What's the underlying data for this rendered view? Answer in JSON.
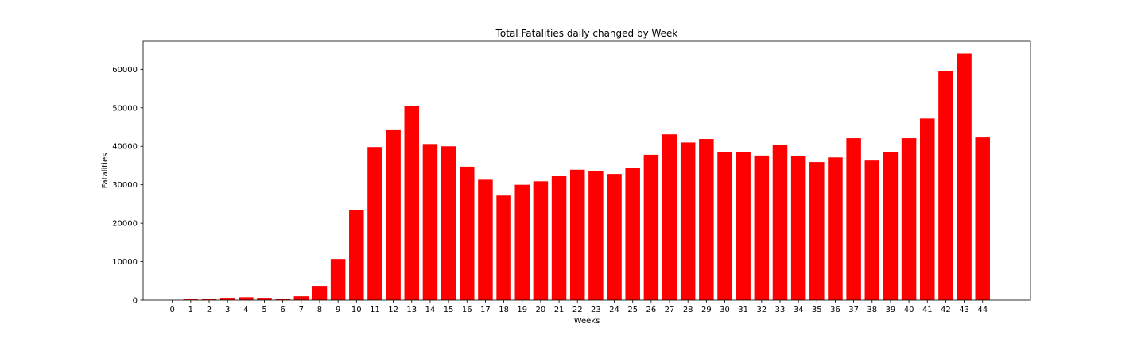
{
  "chart_data": {
    "type": "bar",
    "title": "Total Fatalities daily changed by Week",
    "xlabel": "Weeks",
    "ylabel": "Fatalities",
    "categories": [
      "0",
      "1",
      "2",
      "3",
      "4",
      "5",
      "6",
      "7",
      "8",
      "9",
      "10",
      "11",
      "12",
      "13",
      "14",
      "15",
      "16",
      "17",
      "18",
      "19",
      "20",
      "21",
      "22",
      "23",
      "24",
      "25",
      "26",
      "27",
      "28",
      "29",
      "30",
      "31",
      "32",
      "33",
      "34",
      "35",
      "36",
      "37",
      "38",
      "39",
      "40",
      "41",
      "42",
      "43",
      "44"
    ],
    "values": [
      20,
      200,
      400,
      600,
      750,
      600,
      400,
      1000,
      3700,
      10700,
      23500,
      39800,
      44200,
      50500,
      40600,
      40000,
      34700,
      31300,
      27200,
      30000,
      30900,
      32200,
      33900,
      33600,
      32800,
      34400,
      37800,
      43100,
      41000,
      41900,
      38400,
      38400,
      37600,
      40400,
      37500,
      35900,
      37100,
      42100,
      36300,
      38600,
      42100,
      47200,
      59600,
      64100,
      42300
    ],
    "yticks": [
      0,
      10000,
      20000,
      30000,
      40000,
      50000,
      60000
    ],
    "ylim": [
      0,
      67300
    ],
    "bar_color": "#ff0000",
    "grid": false,
    "legend": "none"
  }
}
